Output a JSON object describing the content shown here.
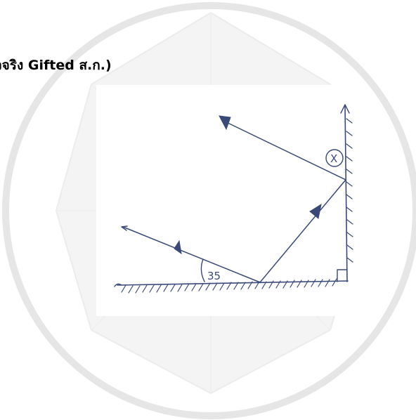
{
  "header": {
    "text": "วจริง Gifted ส.ก.)"
  },
  "diagram": {
    "angle_label": "35",
    "unknown_label": "X"
  },
  "colors": {
    "ink": "#3a4a78",
    "watermark": "#cfcfcf",
    "text": "#000000"
  }
}
